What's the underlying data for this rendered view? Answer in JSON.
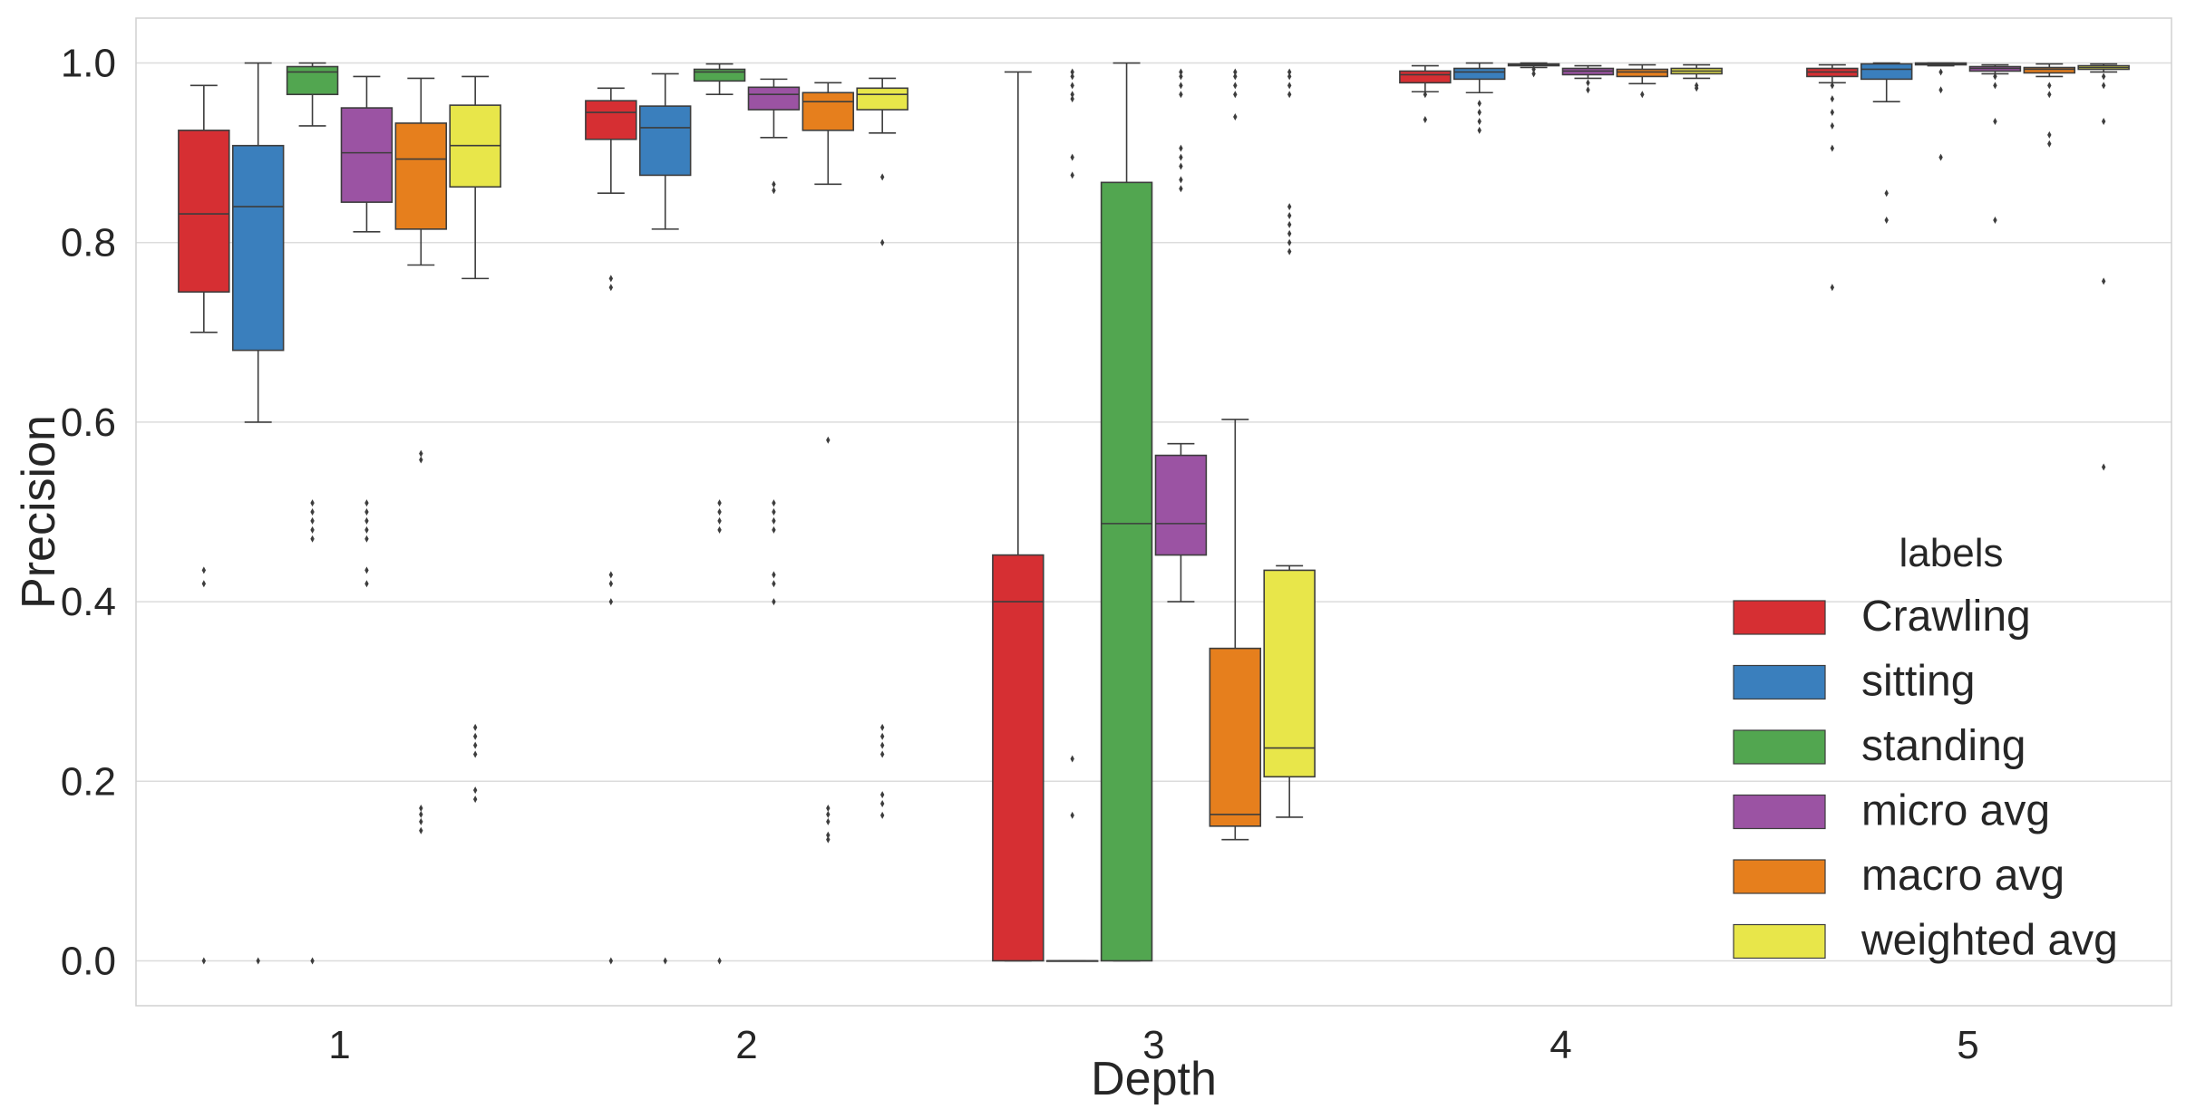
{
  "chart_data": {
    "type": "box",
    "xlabel": "Depth",
    "ylabel": "Precision",
    "categories": [
      "1",
      "2",
      "3",
      "4",
      "5"
    ],
    "ylim": [
      -0.05,
      1.05
    ],
    "yticks": [
      "0.0",
      "0.2",
      "0.4",
      "0.6",
      "0.8",
      "1.0"
    ],
    "grid": "horizontal",
    "legend": {
      "title": "labels",
      "placement": "lower-right"
    },
    "series": [
      {
        "name": "Crawling",
        "color": "#d62f33",
        "boxes": [
          {
            "wlo": 0.7,
            "q1": 0.745,
            "med": 0.832,
            "q3": 0.925,
            "whi": 0.975,
            "fliers": [
              0.435,
              0.42,
              0.0
            ]
          },
          {
            "wlo": 0.855,
            "q1": 0.915,
            "med": 0.945,
            "q3": 0.958,
            "whi": 0.972,
            "fliers": [
              0.76,
              0.75,
              0.43,
              0.42,
              0.4,
              0.0
            ]
          },
          {
            "wlo": 0.0,
            "q1": 0.0,
            "med": 0.4,
            "q3": 0.452,
            "whi": 0.99,
            "fliers": []
          },
          {
            "wlo": 0.968,
            "q1": 0.978,
            "med": 0.987,
            "q3": 0.991,
            "whi": 0.997,
            "fliers": [
              0.965,
              0.937
            ]
          },
          {
            "wlo": 0.978,
            "q1": 0.985,
            "med": 0.99,
            "q3": 0.994,
            "whi": 0.998,
            "fliers": [
              0.975,
              0.96,
              0.945,
              0.93,
              0.905,
              0.75
            ]
          }
        ]
      },
      {
        "name": "sitting",
        "color": "#3a7fbd",
        "boxes": [
          {
            "wlo": 0.6,
            "q1": 0.68,
            "med": 0.84,
            "q3": 0.908,
            "whi": 1.0,
            "fliers": [
              0.0
            ]
          },
          {
            "wlo": 0.815,
            "q1": 0.875,
            "med": 0.928,
            "q3": 0.952,
            "whi": 0.988,
            "fliers": [
              0.0
            ]
          },
          {
            "wlo": 0.0,
            "q1": 0.0,
            "med": 0.0,
            "q3": 0.0,
            "whi": 0.0,
            "fliers": [
              0.99,
              0.985,
              0.975,
              0.965,
              0.96,
              0.895,
              0.875,
              0.225,
              0.162
            ]
          },
          {
            "wlo": 0.967,
            "q1": 0.982,
            "med": 0.99,
            "q3": 0.994,
            "whi": 1.0,
            "fliers": [
              0.955,
              0.945,
              0.935,
              0.925
            ]
          },
          {
            "wlo": 0.957,
            "q1": 0.982,
            "med": 0.993,
            "q3": 0.999,
            "whi": 1.0,
            "fliers": [
              0.855,
              0.825
            ]
          }
        ]
      },
      {
        "name": "standing",
        "color": "#52a650",
        "boxes": [
          {
            "wlo": 0.93,
            "q1": 0.965,
            "med": 0.99,
            "q3": 0.996,
            "whi": 1.0,
            "fliers": [
              0.51,
              0.5,
              0.49,
              0.48,
              0.47,
              0.0
            ]
          },
          {
            "wlo": 0.965,
            "q1": 0.98,
            "med": 0.99,
            "q3": 0.993,
            "whi": 0.999,
            "fliers": [
              0.51,
              0.5,
              0.49,
              0.48,
              0.0
            ]
          },
          {
            "wlo": 0.0,
            "q1": 0.0,
            "med": 0.487,
            "q3": 0.867,
            "whi": 1.0,
            "fliers": []
          },
          {
            "wlo": 0.995,
            "q1": 0.997,
            "med": 0.998,
            "q3": 0.999,
            "whi": 1.0,
            "fliers": [
              0.993,
              0.988
            ]
          },
          {
            "wlo": 0.997,
            "q1": 0.998,
            "med": 0.999,
            "q3": 1.0,
            "whi": 1.0,
            "fliers": [
              0.99,
              0.97,
              0.895
            ]
          }
        ]
      },
      {
        "name": "micro avg",
        "color": "#9b53a3",
        "boxes": [
          {
            "wlo": 0.812,
            "q1": 0.845,
            "med": 0.9,
            "q3": 0.95,
            "whi": 0.985,
            "fliers": [
              0.51,
              0.5,
              0.49,
              0.48,
              0.47,
              0.435,
              0.42
            ]
          },
          {
            "wlo": 0.917,
            "q1": 0.948,
            "med": 0.965,
            "q3": 0.973,
            "whi": 0.982,
            "fliers": [
              0.865,
              0.858,
              0.51,
              0.5,
              0.49,
              0.48,
              0.43,
              0.42,
              0.4
            ]
          },
          {
            "wlo": 0.4,
            "q1": 0.452,
            "med": 0.487,
            "q3": 0.563,
            "whi": 0.576,
            "fliers": [
              0.99,
              0.985,
              0.975,
              0.965,
              0.905,
              0.895,
              0.885,
              0.87,
              0.86
            ]
          },
          {
            "wlo": 0.983,
            "q1": 0.987,
            "med": 0.991,
            "q3": 0.994,
            "whi": 0.997,
            "fliers": [
              0.978,
              0.97
            ]
          },
          {
            "wlo": 0.988,
            "q1": 0.991,
            "med": 0.994,
            "q3": 0.996,
            "whi": 0.998,
            "fliers": [
              0.985,
              0.975,
              0.935,
              0.825
            ]
          }
        ]
      },
      {
        "name": "macro avg",
        "color": "#e67f1d",
        "boxes": [
          {
            "wlo": 0.775,
            "q1": 0.815,
            "med": 0.893,
            "q3": 0.933,
            "whi": 0.983,
            "fliers": [
              0.565,
              0.558,
              0.17,
              0.163,
              0.155,
              0.145
            ]
          },
          {
            "wlo": 0.865,
            "q1": 0.925,
            "med": 0.957,
            "q3": 0.967,
            "whi": 0.978,
            "fliers": [
              0.58,
              0.17,
              0.163,
              0.155,
              0.14,
              0.135
            ]
          },
          {
            "wlo": 0.135,
            "q1": 0.15,
            "med": 0.163,
            "q3": 0.348,
            "whi": 0.603,
            "fliers": [
              0.99,
              0.985,
              0.975,
              0.965,
              0.94
            ]
          },
          {
            "wlo": 0.977,
            "q1": 0.985,
            "med": 0.99,
            "q3": 0.993,
            "whi": 0.998,
            "fliers": [
              0.965
            ]
          },
          {
            "wlo": 0.985,
            "q1": 0.989,
            "med": 0.993,
            "q3": 0.995,
            "whi": 0.999,
            "fliers": [
              0.975,
              0.965,
              0.92,
              0.91
            ]
          }
        ]
      },
      {
        "name": "weighted avg",
        "color": "#e8e64a",
        "boxes": [
          {
            "wlo": 0.76,
            "q1": 0.862,
            "med": 0.908,
            "q3": 0.953,
            "whi": 0.985,
            "fliers": [
              0.26,
              0.25,
              0.24,
              0.23,
              0.19,
              0.18
            ]
          },
          {
            "wlo": 0.922,
            "q1": 0.948,
            "med": 0.965,
            "q3": 0.972,
            "whi": 0.983,
            "fliers": [
              0.873,
              0.8,
              0.26,
              0.25,
              0.24,
              0.23,
              0.185,
              0.175,
              0.162
            ]
          },
          {
            "wlo": 0.16,
            "q1": 0.205,
            "med": 0.237,
            "q3": 0.435,
            "whi": 0.44,
            "fliers": [
              0.99,
              0.985,
              0.975,
              0.965,
              0.84,
              0.83,
              0.82,
              0.81,
              0.8,
              0.79
            ]
          },
          {
            "wlo": 0.983,
            "q1": 0.988,
            "med": 0.991,
            "q3": 0.994,
            "whi": 0.998,
            "fliers": [
              0.975,
              0.972
            ]
          },
          {
            "wlo": 0.99,
            "q1": 0.993,
            "med": 0.995,
            "q3": 0.997,
            "whi": 0.999,
            "fliers": [
              0.985,
              0.975,
              0.935,
              0.757,
              0.55
            ]
          }
        ]
      }
    ]
  }
}
